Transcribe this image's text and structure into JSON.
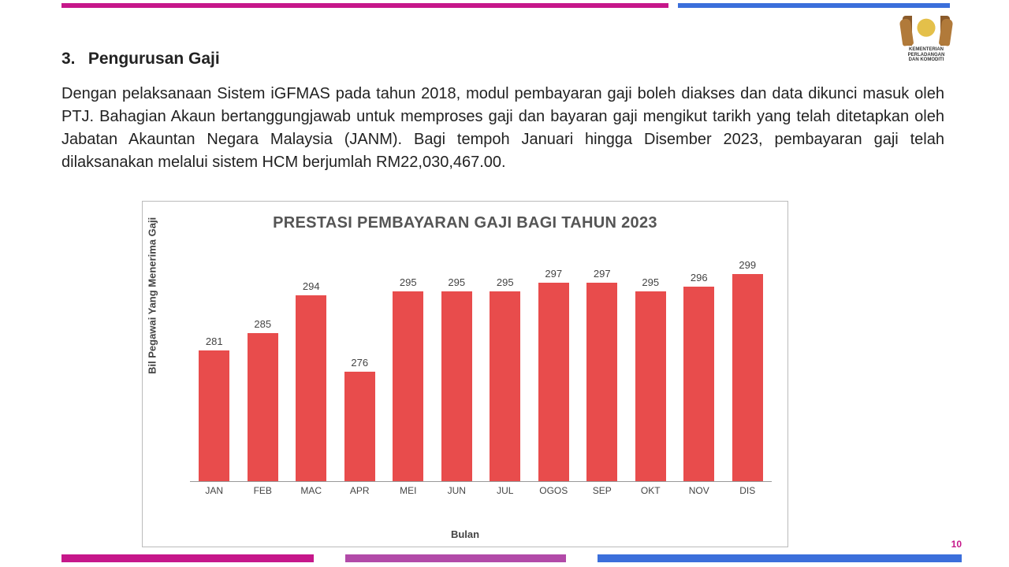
{
  "logo": {
    "line1": "KEMENTERIAN PERLADANGAN",
    "line2": "DAN KOMODITI"
  },
  "heading": {
    "number": "3.",
    "text": "Pengurusan Gaji"
  },
  "paragraph": "Dengan pelaksanaan Sistem iGFMAS pada tahun 2018, modul pembayaran gaji boleh diakses dan data dikunci masuk oleh PTJ. Bahagian Akaun bertanggungjawab untuk memproses gaji dan bayaran gaji mengikut tarikh yang telah ditetapkan oleh Jabatan Akauntan Negara Malaysia (JANM). Bagi tempoh Januari hingga Disember 2023, pembayaran gaji telah dilaksanakan melalui sistem HCM berjumlah RM22,030,467.00.",
  "chart": {
    "type": "bar",
    "title": "PRESTASI PEMBAYARAN GAJI BAGI TAHUN 2023",
    "ylabel": "Bil Pegawai Yang Menerima Gaji",
    "xlabel": "Bulan",
    "categories": [
      "JAN",
      "FEB",
      "MAC",
      "APR",
      "MEI",
      "JUN",
      "JUL",
      "OGOS",
      "SEP",
      "OKT",
      "NOV",
      "DIS"
    ],
    "values": [
      281,
      285,
      294,
      276,
      295,
      295,
      295,
      297,
      297,
      295,
      296,
      299
    ],
    "bar_color": "#e84c4c",
    "value_fontsize": 13,
    "label_fontsize": 12,
    "title_fontsize": 20,
    "title_color": "#555555",
    "axis_color": "#999999",
    "background_color": "#ffffff",
    "border_color": "#bbbbbb",
    "ylim_min_visual": 250,
    "ylim_max_visual": 305,
    "bar_width_ratio": 0.72
  },
  "page_number": "10",
  "accent_colors": {
    "pink": "#c6178a",
    "purple": "#b24aa8",
    "blue": "#3b6fdb"
  }
}
